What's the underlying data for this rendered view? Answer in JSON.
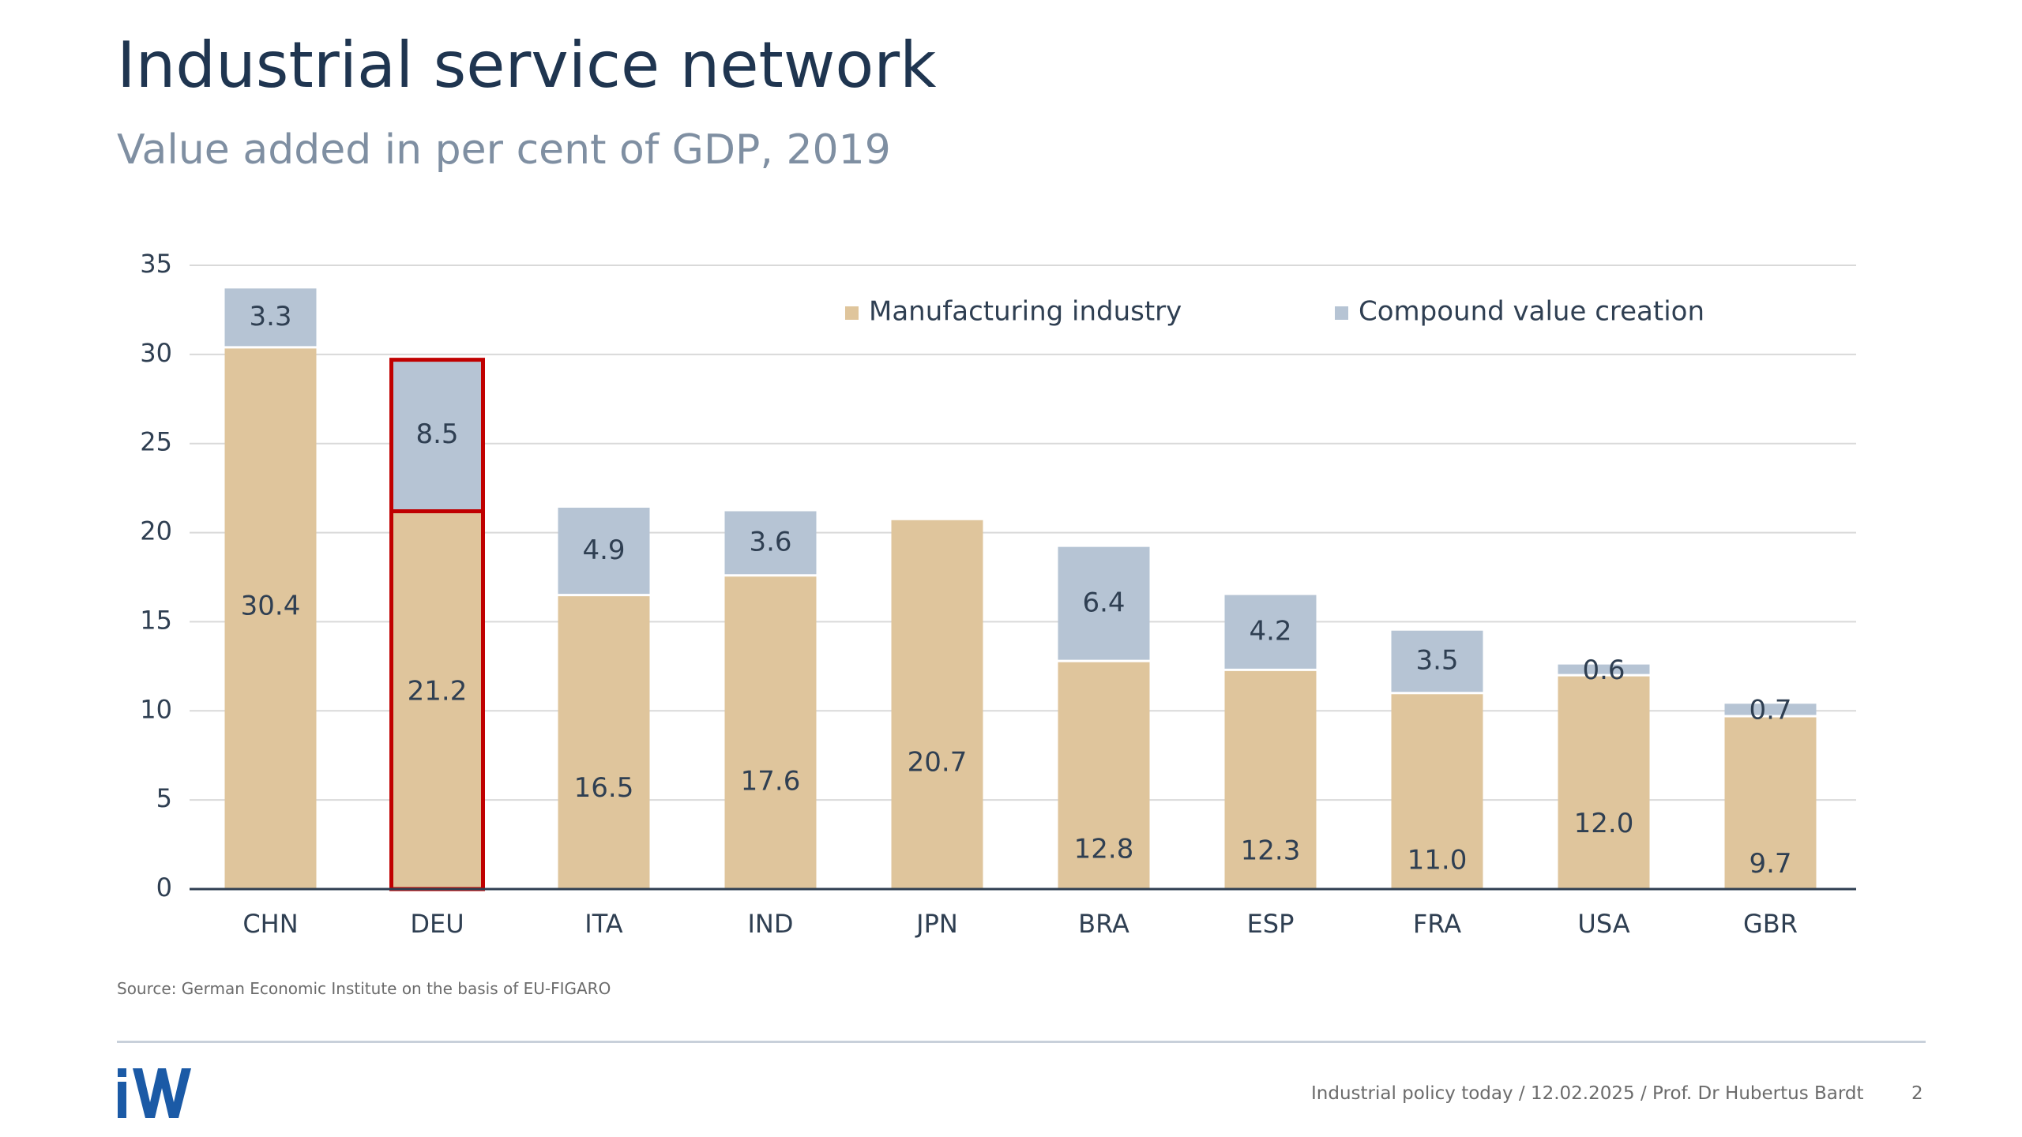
{
  "header": {
    "title": "Industrial service network",
    "subtitle": "Value added in per cent of GDP, 2019"
  },
  "chart_data": {
    "type": "bar",
    "stacked": true,
    "categories": [
      "CHN",
      "DEU",
      "ITA",
      "IND",
      "JPN",
      "BRA",
      "ESP",
      "FRA",
      "USA",
      "GBR"
    ],
    "series": [
      {
        "name": "Manufacturing industry",
        "color": "#dfc59c",
        "values": [
          30.4,
          21.2,
          16.5,
          17.6,
          20.7,
          12.8,
          12.3,
          11.0,
          12.0,
          9.7
        ],
        "labels": [
          "30.4",
          "21.2",
          "16.5",
          "17.6",
          "20.7",
          "12.8",
          "12.3",
          "11.0",
          "12.0",
          "9.7"
        ]
      },
      {
        "name": "Compound value creation",
        "color": "#b6c4d4",
        "values": [
          3.3,
          8.5,
          4.9,
          3.6,
          null,
          6.4,
          4.2,
          3.5,
          0.6,
          0.7
        ],
        "labels": [
          "3.3",
          "8.5",
          "4.9",
          "3.6",
          "",
          "6.4",
          "4.2",
          "3.5",
          "0.6",
          "0.7"
        ]
      }
    ],
    "ylim": [
      0,
      35
    ],
    "yticks": [
      "0",
      "5",
      "10",
      "15",
      "20",
      "25",
      "30",
      "35"
    ],
    "grid": true,
    "legend": "top-right",
    "highlight": {
      "category": "DEU",
      "color": "#c00000"
    },
    "xlabel": "",
    "ylabel": ""
  },
  "source": "Source: German Economic Institute on the basis of EU-FIGARO",
  "footer": {
    "text": "Industrial policy today / 12.02.2025 / Prof. Dr Hubertus Bardt",
    "page": "2",
    "logo_text": "iW",
    "brand_color": "#1b5aa6"
  },
  "colors": {
    "title": "#1f3550",
    "subtitle": "#7f8fa2",
    "grid": "#d9d9d9",
    "axis": "#2f3f52",
    "text": "#2f3f52"
  }
}
